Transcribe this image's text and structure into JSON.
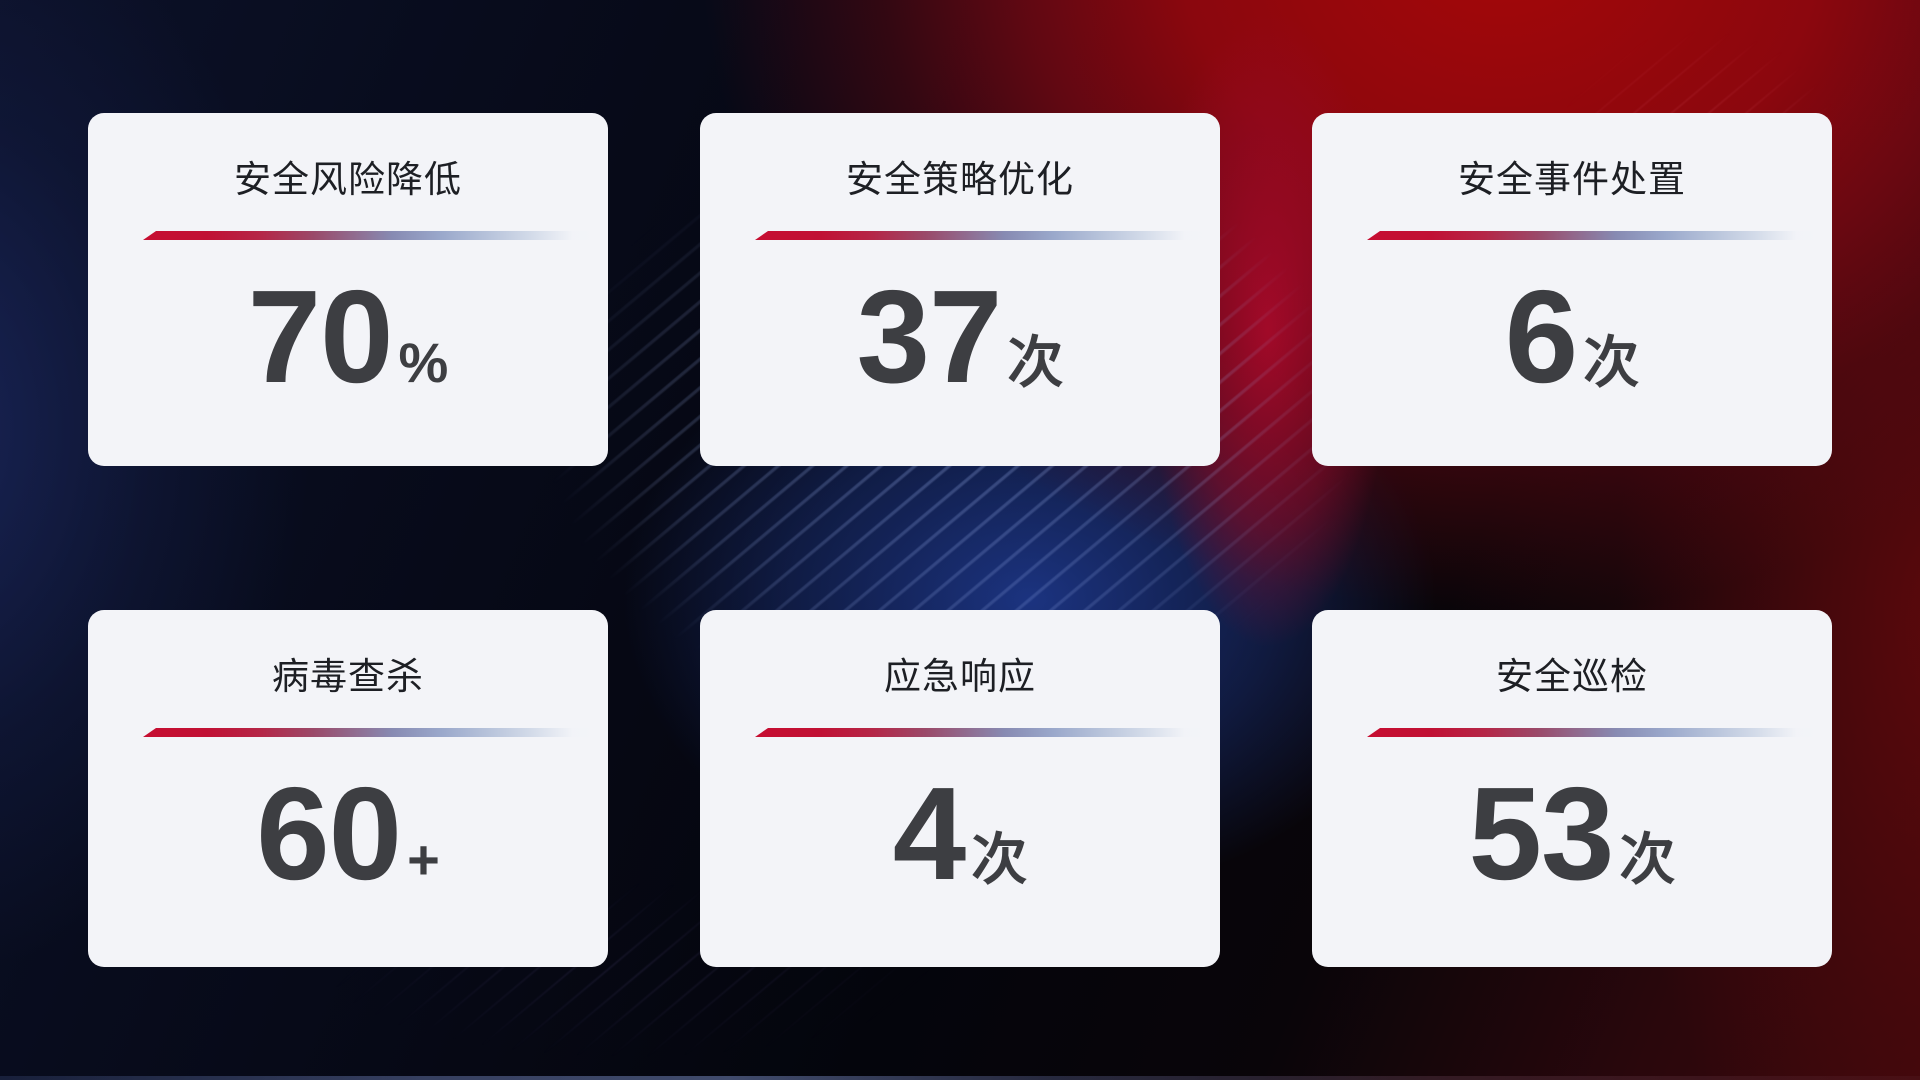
{
  "theme": {
    "card_background": "#f3f4f8",
    "title_color": "#1d1f24",
    "value_color": "#3d3e42",
    "divider_red": "#c60e31",
    "divider_blue": "#9aa8cb",
    "background_navy": "#0b1028",
    "background_red_glow": "#a60709",
    "background_blue_glow": "#1c388c"
  },
  "cards": [
    {
      "title": "安全风险降低",
      "value": "70",
      "unit": "%"
    },
    {
      "title": "安全策略优化",
      "value": "37",
      "unit": "次"
    },
    {
      "title": "安全事件处置",
      "value": "6",
      "unit": "次"
    },
    {
      "title": "病毒查杀",
      "value": "60",
      "unit": "+"
    },
    {
      "title": "应急响应",
      "value": "4",
      "unit": "次"
    },
    {
      "title": "安全巡检",
      "value": "53",
      "unit": "次"
    }
  ]
}
